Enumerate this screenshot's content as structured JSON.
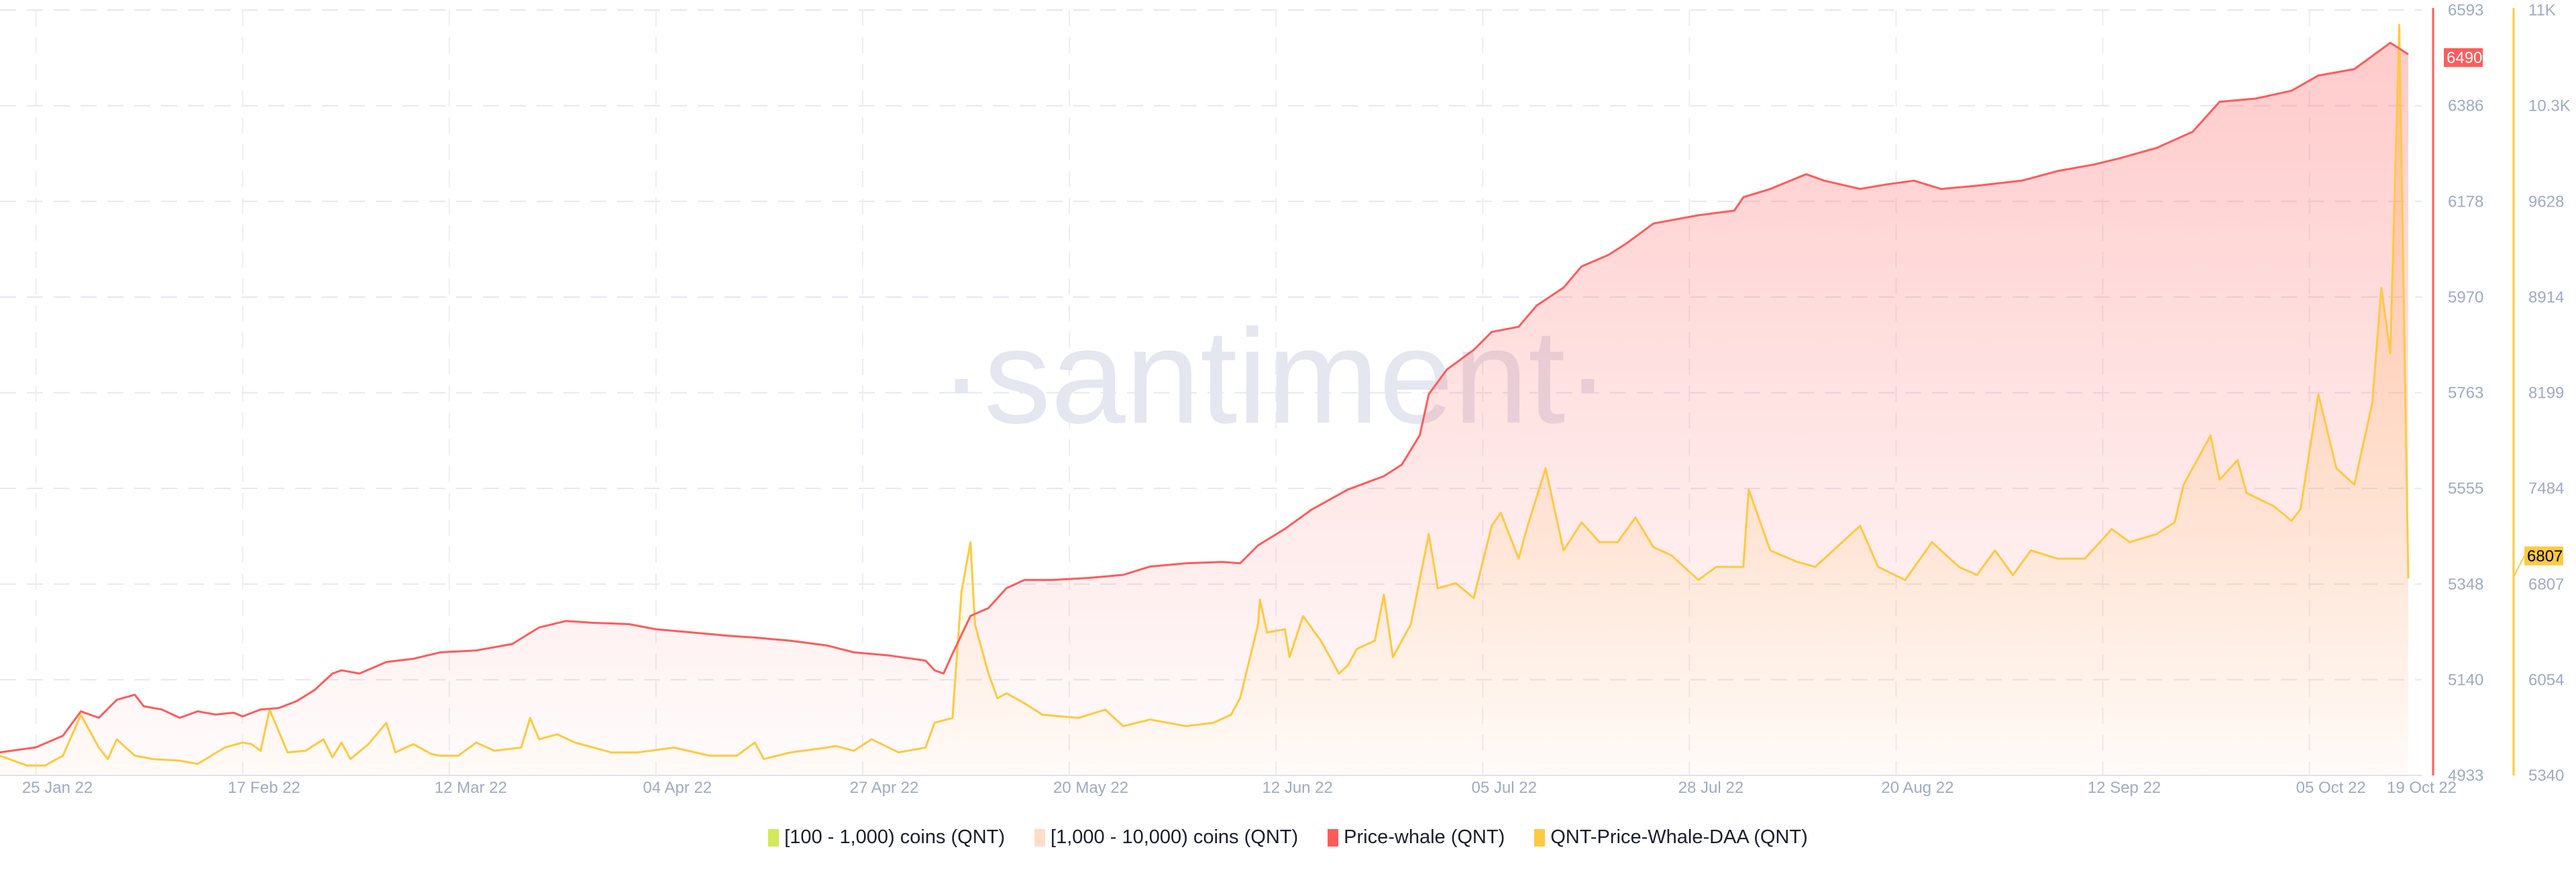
{
  "chart_data": {
    "type": "line",
    "title": "",
    "watermark": "·santiment·",
    "x_unit": "days since 21 Jan 22",
    "x_range": [
      0,
      268
    ],
    "x_ticks": [
      {
        "day": 4,
        "label": "25 Jan 22"
      },
      {
        "day": 27,
        "label": "17 Feb 22"
      },
      {
        "day": 50,
        "label": "12 Mar 22"
      },
      {
        "day": 73,
        "label": "04 Apr 22"
      },
      {
        "day": 96,
        "label": "27 Apr 22"
      },
      {
        "day": 119,
        "label": "20 May 22"
      },
      {
        "day": 142,
        "label": "12 Jun 22"
      },
      {
        "day": 165,
        "label": "05 Jul 22"
      },
      {
        "day": 188,
        "label": "28 Jul 22"
      },
      {
        "day": 211,
        "label": "20 Aug 22"
      },
      {
        "day": 234,
        "label": "12 Sep 22"
      },
      {
        "day": 257,
        "label": "05 Oct 22"
      },
      {
        "day": 268,
        "label": "19 Oct 22"
      }
    ],
    "axes": [
      {
        "id": "price",
        "color": "#ff5b5b",
        "ylim": [
          4933,
          6593
        ],
        "ticks": [
          "6593",
          "6386",
          "6178",
          "5970",
          "5763",
          "5555",
          "5348",
          "5140",
          "4933"
        ],
        "last_value": "6490"
      },
      {
        "id": "daa",
        "color": "#ffc940",
        "ylim": [
          5340,
          11000
        ],
        "ticks": [
          "11K",
          "10.3K",
          "9628",
          "8914",
          "8199",
          "7484",
          "6807",
          "6054",
          "5340"
        ],
        "last_value": "6807"
      }
    ],
    "legend": [
      {
        "label": "[100 - 1,000) coins (QNT)",
        "color": "#d4e85c"
      },
      {
        "label": "[1,000 - 10,000) coins (QNT)",
        "color": "#ffdcc8"
      },
      {
        "label": "Price-whale (QNT)",
        "color": "#ff5b5b"
      },
      {
        "label": "QNT-Price-Whale-DAA (QNT)",
        "color": "#ffc940"
      }
    ],
    "series": [
      {
        "name": "Price-whale (QNT)",
        "axis": "price",
        "color": "#ff5b5b",
        "points": [
          [
            0,
            4983
          ],
          [
            4,
            4994
          ],
          [
            7,
            5019
          ],
          [
            9,
            5072
          ],
          [
            11,
            5058
          ],
          [
            13,
            5097
          ],
          [
            15,
            5108
          ],
          [
            16,
            5083
          ],
          [
            18,
            5076
          ],
          [
            20,
            5058
          ],
          [
            22,
            5072
          ],
          [
            24,
            5065
          ],
          [
            26,
            5069
          ],
          [
            27,
            5061
          ],
          [
            29,
            5076
          ],
          [
            31,
            5079
          ],
          [
            33,
            5094
          ],
          [
            35,
            5118
          ],
          [
            37,
            5154
          ],
          [
            38,
            5161
          ],
          [
            40,
            5154
          ],
          [
            43,
            5179
          ],
          [
            46,
            5186
          ],
          [
            49,
            5200
          ],
          [
            53,
            5204
          ],
          [
            57,
            5218
          ],
          [
            60,
            5254
          ],
          [
            63,
            5268
          ],
          [
            66,
            5264
          ],
          [
            70,
            5261
          ],
          [
            73,
            5250
          ],
          [
            77,
            5243
          ],
          [
            81,
            5236
          ],
          [
            84,
            5232
          ],
          [
            88,
            5225
          ],
          [
            92,
            5215
          ],
          [
            95,
            5200
          ],
          [
            99,
            5193
          ],
          [
            103,
            5182
          ],
          [
            104,
            5161
          ],
          [
            105,
            5154
          ],
          [
            106,
            5197
          ],
          [
            108,
            5279
          ],
          [
            110,
            5296
          ],
          [
            112,
            5339
          ],
          [
            114,
            5357
          ],
          [
            117,
            5357
          ],
          [
            121,
            5361
          ],
          [
            125,
            5368
          ],
          [
            128,
            5386
          ],
          [
            132,
            5393
          ],
          [
            136,
            5396
          ],
          [
            138,
            5393
          ],
          [
            140,
            5432
          ],
          [
            143,
            5468
          ],
          [
            146,
            5510
          ],
          [
            150,
            5553
          ],
          [
            154,
            5582
          ],
          [
            156,
            5607
          ],
          [
            158,
            5671
          ],
          [
            159,
            5760
          ],
          [
            161,
            5813
          ],
          [
            164,
            5856
          ],
          [
            166,
            5895
          ],
          [
            169,
            5906
          ],
          [
            171,
            5952
          ],
          [
            174,
            5991
          ],
          [
            176,
            6037
          ],
          [
            179,
            6062
          ],
          [
            181,
            6087
          ],
          [
            184,
            6130
          ],
          [
            189,
            6148
          ],
          [
            193,
            6158
          ],
          [
            194,
            6187
          ],
          [
            197,
            6205
          ],
          [
            201,
            6237
          ],
          [
            203,
            6223
          ],
          [
            207,
            6205
          ],
          [
            210,
            6215
          ],
          [
            213,
            6223
          ],
          [
            216,
            6205
          ],
          [
            220,
            6212
          ],
          [
            225,
            6223
          ],
          [
            229,
            6244
          ],
          [
            233,
            6258
          ],
          [
            236,
            6272
          ],
          [
            240,
            6294
          ],
          [
            244,
            6329
          ],
          [
            247,
            6394
          ],
          [
            251,
            6401
          ],
          [
            255,
            6418
          ],
          [
            258,
            6451
          ],
          [
            262,
            6465
          ],
          [
            266,
            6522
          ],
          [
            268,
            6497
          ]
        ]
      },
      {
        "name": "QNT-Price-Whale-DAA (QNT)",
        "axis": "daa",
        "color": "#ffc940",
        "points": [
          [
            0,
            5486
          ],
          [
            3,
            5413
          ],
          [
            5,
            5413
          ],
          [
            7,
            5486
          ],
          [
            9,
            5789
          ],
          [
            11,
            5546
          ],
          [
            12,
            5461
          ],
          [
            13,
            5607
          ],
          [
            15,
            5486
          ],
          [
            17,
            5461
          ],
          [
            20,
            5449
          ],
          [
            22,
            5425
          ],
          [
            25,
            5546
          ],
          [
            27,
            5583
          ],
          [
            28,
            5571
          ],
          [
            29,
            5522
          ],
          [
            30,
            5826
          ],
          [
            32,
            5510
          ],
          [
            34,
            5522
          ],
          [
            36,
            5607
          ],
          [
            37,
            5474
          ],
          [
            38,
            5583
          ],
          [
            39,
            5461
          ],
          [
            41,
            5571
          ],
          [
            43,
            5729
          ],
          [
            44,
            5510
          ],
          [
            46,
            5571
          ],
          [
            48,
            5498
          ],
          [
            49,
            5486
          ],
          [
            51,
            5486
          ],
          [
            53,
            5583
          ],
          [
            55,
            5522
          ],
          [
            58,
            5546
          ],
          [
            59,
            5765
          ],
          [
            60,
            5607
          ],
          [
            62,
            5644
          ],
          [
            64,
            5583
          ],
          [
            68,
            5510
          ],
          [
            71,
            5510
          ],
          [
            75,
            5546
          ],
          [
            79,
            5486
          ],
          [
            82,
            5486
          ],
          [
            84,
            5583
          ],
          [
            85,
            5461
          ],
          [
            88,
            5510
          ],
          [
            92,
            5546
          ],
          [
            93,
            5558
          ],
          [
            95,
            5522
          ],
          [
            97,
            5607
          ],
          [
            100,
            5510
          ],
          [
            103,
            5546
          ],
          [
            104,
            5729
          ],
          [
            106,
            5765
          ],
          [
            107,
            6700
          ],
          [
            108,
            7065
          ],
          [
            108.5,
            6457
          ],
          [
            110,
            6093
          ],
          [
            111,
            5911
          ],
          [
            112,
            5947
          ],
          [
            114,
            5874
          ],
          [
            116,
            5789
          ],
          [
            120,
            5765
          ],
          [
            123,
            5826
          ],
          [
            125,
            5704
          ],
          [
            128,
            5753
          ],
          [
            132,
            5704
          ],
          [
            135,
            5729
          ],
          [
            137,
            5789
          ],
          [
            138,
            5911
          ],
          [
            140,
            6457
          ],
          [
            140.2,
            6640
          ],
          [
            141,
            6397
          ],
          [
            143,
            6421
          ],
          [
            143.5,
            6215
          ],
          [
            145,
            6518
          ],
          [
            147,
            6336
          ],
          [
            149,
            6093
          ],
          [
            150,
            6154
          ],
          [
            151,
            6275
          ],
          [
            153,
            6336
          ],
          [
            154,
            6676
          ],
          [
            155,
            6215
          ],
          [
            157,
            6457
          ],
          [
            159,
            7125
          ],
          [
            160,
            6724
          ],
          [
            162,
            6761
          ],
          [
            164,
            6652
          ],
          [
            166,
            7186
          ],
          [
            167,
            7283
          ],
          [
            169,
            6943
          ],
          [
            170,
            7186
          ],
          [
            172,
            7611
          ],
          [
            174,
            7004
          ],
          [
            176,
            7211
          ],
          [
            178,
            7065
          ],
          [
            180,
            7065
          ],
          [
            182,
            7247
          ],
          [
            184,
            7028
          ],
          [
            186,
            6967
          ],
          [
            189,
            6785
          ],
          [
            191,
            6882
          ],
          [
            194,
            6882
          ],
          [
            194.6,
            7453
          ],
          [
            197,
            7004
          ],
          [
            200,
            6919
          ],
          [
            202,
            6882
          ],
          [
            207,
            7186
          ],
          [
            209,
            6882
          ],
          [
            212,
            6785
          ],
          [
            215,
            7065
          ],
          [
            218,
            6882
          ],
          [
            220,
            6822
          ],
          [
            222,
            7004
          ],
          [
            224,
            6822
          ],
          [
            226,
            7004
          ],
          [
            229,
            6943
          ],
          [
            232,
            6943
          ],
          [
            235,
            7162
          ],
          [
            237,
            7065
          ],
          [
            240,
            7125
          ],
          [
            242,
            7211
          ],
          [
            243,
            7490
          ],
          [
            246,
            7854
          ],
          [
            247,
            7526
          ],
          [
            249,
            7672
          ],
          [
            250,
            7429
          ],
          [
            253,
            7332
          ],
          [
            255,
            7223
          ],
          [
            256,
            7308
          ],
          [
            258,
            8158
          ],
          [
            260,
            7611
          ],
          [
            262,
            7490
          ],
          [
            264,
            8097
          ],
          [
            265,
            8947
          ],
          [
            266,
            8461
          ],
          [
            267,
            10891
          ],
          [
            268,
            6797
          ]
        ]
      }
    ]
  }
}
